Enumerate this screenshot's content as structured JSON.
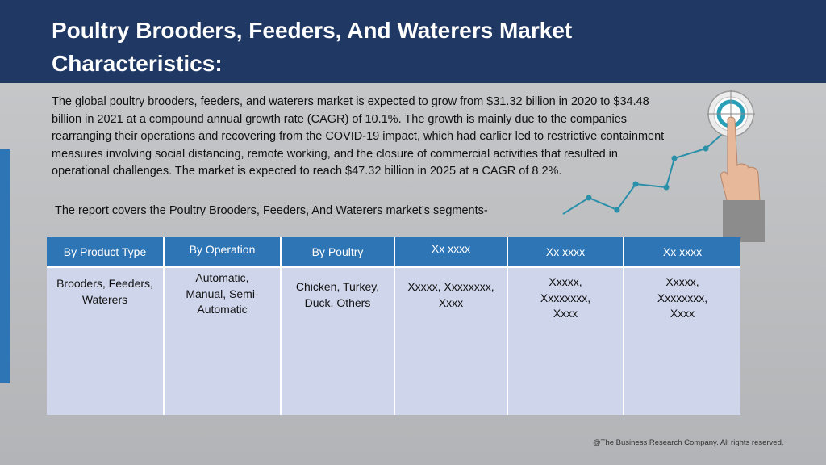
{
  "title": "Poultry Brooders, Feeders, And Waterers Market Characteristics:",
  "body_text": "The global poultry brooders, feeders, and waterers market is expected to grow from $31.32 billion in 2020 to $34.48 billion in 2021 at a compound annual growth rate (CAGR) of 10.1%. The growth is mainly due to the companies rearranging their operations and recovering from the COVID-19 impact, which had earlier led to restrictive containment measures involving social distancing, remote working, and the closure of commercial activities that resulted in operational challenges. The market is expected to reach $47.32 billion in 2025 at a CAGR of 8.2%.",
  "subtext": "The report covers the Poultry Brooders, Feeders, And Waterers market’s segments-",
  "table": {
    "headers": [
      "By Product Type",
      "By Operation",
      "By Poultry",
      "Xx xxxx",
      "Xx xxxx",
      "Xx xxxx"
    ],
    "cells": [
      "Brooders, Feeders, Waterers",
      "Automatic, Manual, Semi-Automatic",
      "Chicken, Turkey, Duck, Others",
      "Xxxxx, Xxxxxxxx, Xxxx",
      "Xxxxx, Xxxxxxxx, Xxxx",
      "Xxxxx, Xxxxxxxx, Xxxx"
    ]
  },
  "footer": "@The Business Research Company. All rights reserved.",
  "colors": {
    "header_bg": "#203864",
    "accent_blue": "#2e75b6",
    "table_body_bg": "#cfd5ea",
    "graph_teal": "#2a8fa8"
  },
  "icons": [
    "target-icon",
    "pointing-hand-icon",
    "growth-line-icon"
  ]
}
